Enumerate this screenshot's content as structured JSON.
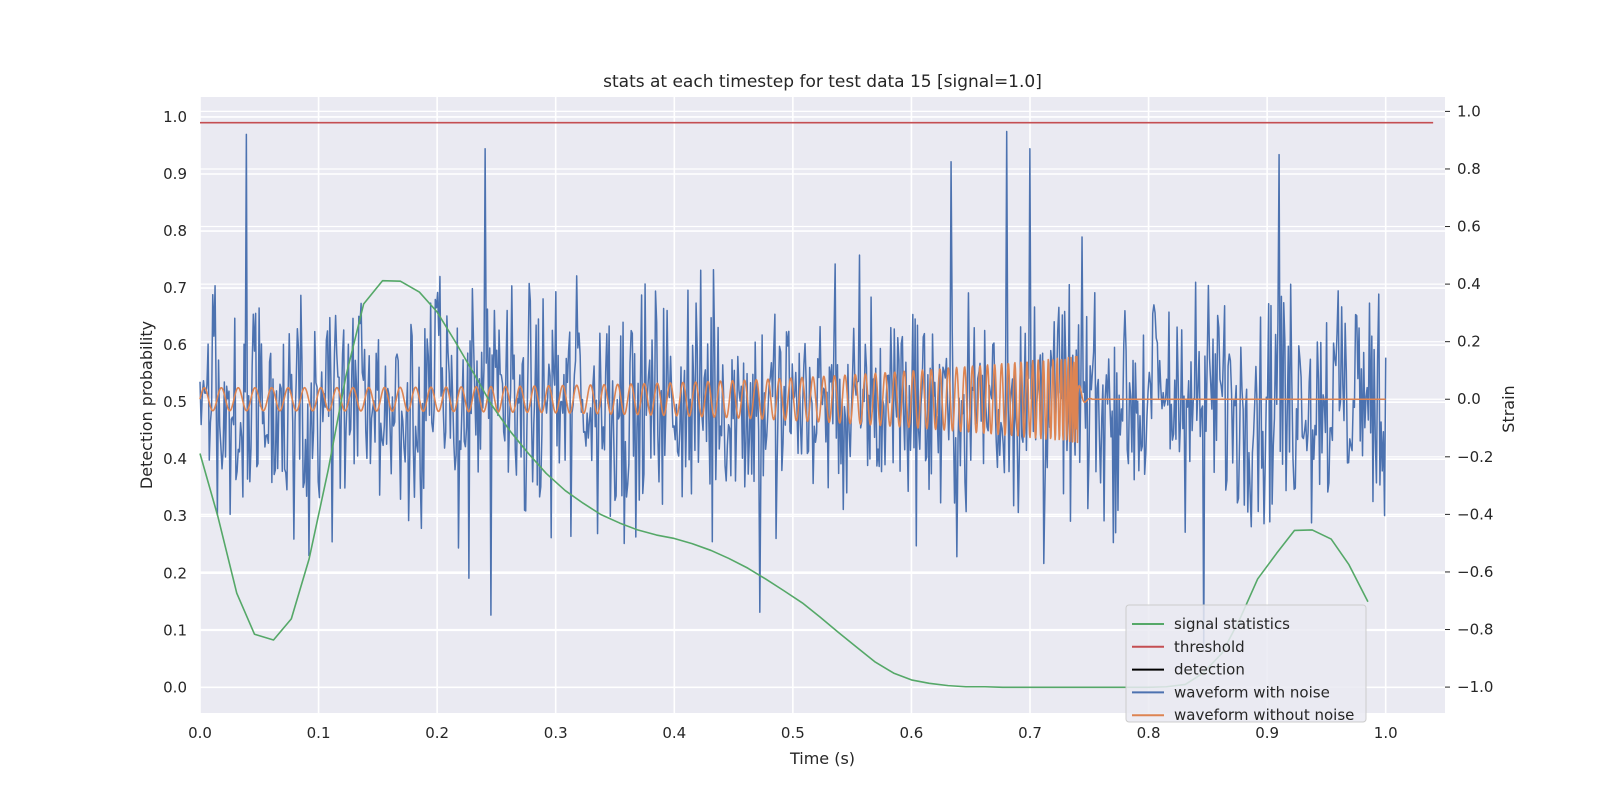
{
  "chart_data": {
    "type": "line",
    "title": "stats at each timestep for test data 15 [signal=1.0]",
    "xlabel": "Time (s)",
    "ylabel": "Detection probability",
    "ylabel_right": "Strain",
    "xlim": [
      0.0,
      1.05
    ],
    "ylim": [
      -0.045,
      1.035
    ],
    "ylim_right": [
      -1.09,
      1.05
    ],
    "grid": true,
    "legend_position": "lower-right",
    "x_ticks": [
      0.0,
      0.1,
      0.2,
      0.3,
      0.4,
      0.5,
      0.6,
      0.7,
      0.8,
      0.9,
      1.0
    ],
    "x_tick_labels": [
      "0.0",
      "0.1",
      "0.2",
      "0.3",
      "0.4",
      "0.5",
      "0.6",
      "0.7",
      "0.8",
      "0.9",
      "1.0"
    ],
    "y_ticks": [
      0.0,
      0.1,
      0.2,
      0.3,
      0.4,
      0.5,
      0.6,
      0.7,
      0.8,
      0.9,
      1.0
    ],
    "y_tick_labels": [
      "0.0",
      "0.1",
      "0.2",
      "0.3",
      "0.4",
      "0.5",
      "0.6",
      "0.7",
      "0.8",
      "0.9",
      "1.0"
    ],
    "y_right_ticks": [
      -1.0,
      -0.8,
      -0.6,
      -0.4,
      -0.2,
      0.0,
      0.2,
      0.4,
      0.6,
      0.8,
      1.0
    ],
    "y_right_tick_labels": [
      "−1.0",
      "−0.8",
      "−0.6",
      "−0.4",
      "−0.2",
      "0.0",
      "0.2",
      "0.4",
      "0.6",
      "0.8",
      "1.0"
    ],
    "series": [
      {
        "name": "signal statistics",
        "axis": "left",
        "color": "#55a868",
        "x": [
          0.0,
          0.015,
          0.031,
          0.046,
          0.062,
          0.077,
          0.092,
          0.108,
          0.123,
          0.138,
          0.154,
          0.169,
          0.185,
          0.2,
          0.215,
          0.231,
          0.246,
          0.262,
          0.277,
          0.292,
          0.308,
          0.323,
          0.338,
          0.354,
          0.369,
          0.385,
          0.4,
          0.415,
          0.431,
          0.446,
          0.462,
          0.477,
          0.492,
          0.508,
          0.523,
          0.538,
          0.554,
          0.569,
          0.585,
          0.6,
          0.615,
          0.631,
          0.646,
          0.662,
          0.677,
          0.692,
          0.708,
          0.723,
          0.738,
          0.754,
          0.769,
          0.785,
          0.8,
          0.815,
          0.831,
          0.846,
          0.862,
          0.877,
          0.892,
          0.908,
          0.923,
          0.938,
          0.954,
          0.969,
          0.985
        ],
        "y": [
          0.41,
          0.3,
          0.165,
          0.093,
          0.083,
          0.12,
          0.225,
          0.38,
          0.545,
          0.672,
          0.713,
          0.712,
          0.693,
          0.658,
          0.607,
          0.55,
          0.495,
          0.448,
          0.41,
          0.375,
          0.345,
          0.323,
          0.303,
          0.288,
          0.276,
          0.267,
          0.261,
          0.252,
          0.24,
          0.226,
          0.209,
          0.19,
          0.17,
          0.148,
          0.123,
          0.097,
          0.07,
          0.045,
          0.025,
          0.013,
          0.007,
          0.003,
          0.001,
          0.001,
          0.0,
          0.0,
          0.0,
          0.0,
          0.0,
          0.0,
          0.0,
          0.0,
          0.0,
          0.001,
          0.005,
          0.025,
          0.06,
          0.12,
          0.19,
          0.235,
          0.275,
          0.276,
          0.26,
          0.215,
          0.15
        ]
      },
      {
        "name": "threshold",
        "axis": "left",
        "color": "#c44e52",
        "x": [
          0.0,
          1.04
        ],
        "y": [
          0.99,
          0.99
        ]
      },
      {
        "name": "detection",
        "axis": "left",
        "color": "#000000",
        "x": [],
        "y": []
      },
      {
        "name": "waveform with noise",
        "axis": "right",
        "color": "#4c72b0",
        "generated": true,
        "x_start": 0.0,
        "x_end": 1.0,
        "samples": 1024,
        "amplitude_range": [
          -0.95,
          0.95
        ],
        "peaks": [
          {
            "x": 0.039,
            "y": 0.92
          },
          {
            "x": 0.24,
            "y": 0.87
          },
          {
            "x": 0.68,
            "y": 0.93
          },
          {
            "x": 0.7,
            "y": 0.87
          },
          {
            "x": 0.91,
            "y": 0.85
          },
          {
            "x": 0.245,
            "y": -0.75
          },
          {
            "x": 0.472,
            "y": -0.74
          },
          {
            "x": 0.847,
            "y": -0.87
          }
        ]
      },
      {
        "name": "waveform without noise",
        "axis": "right",
        "color": "#dd8452",
        "generated": true,
        "x_start": 0.0,
        "x_end": 1.0,
        "chirp_end": 0.74,
        "amplitude_start": 0.04,
        "amplitude_peak": 0.15,
        "cycles": 82
      }
    ]
  }
}
